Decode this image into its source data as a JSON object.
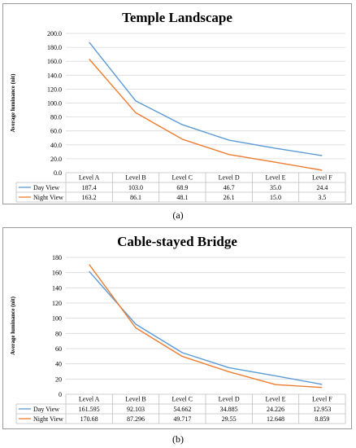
{
  "chart_data": [
    {
      "type": "line",
      "title": "Temple Landscape",
      "ylabel": "Average luminance (nit)",
      "xlabel": "",
      "ylim": [
        0,
        200
      ],
      "ytick_step": 20,
      "ytick_decimals": 1,
      "grid": true,
      "legend": "data-table-left",
      "categories": [
        "Level A",
        "Level B",
        "Level C",
        "Level D",
        "Level E",
        "Level F"
      ],
      "series": [
        {
          "name": "Day View",
          "color": "#5b9bd5",
          "values": [
            187.4,
            103.0,
            68.9,
            46.7,
            35.0,
            24.4
          ],
          "labels": [
            "187.4",
            "103.0",
            "68.9",
            "46.7",
            "35.0",
            "24.4"
          ]
        },
        {
          "name": "Night View",
          "color": "#ed7d31",
          "values": [
            163.2,
            86.1,
            48.1,
            26.1,
            15.0,
            3.5
          ],
          "labels": [
            "163.2",
            "86.1",
            "48.1",
            "26.1",
            "15.0",
            "3.5"
          ]
        }
      ]
    },
    {
      "type": "line",
      "title": "Cable-stayed Bridge",
      "ylabel": "Average luminance (nit)",
      "xlabel": "",
      "ylim": [
        0,
        180
      ],
      "ytick_step": 20,
      "ytick_decimals": 0,
      "grid": true,
      "legend": "data-table-left",
      "categories": [
        "Level A",
        "Level B",
        "Level C",
        "Level D",
        "Level E",
        "Level F"
      ],
      "series": [
        {
          "name": "Day View",
          "color": "#5b9bd5",
          "values": [
            161.595,
            92.103,
            54.662,
            34.885,
            24.226,
            12.953
          ],
          "labels": [
            "161.595",
            "92.103",
            "54.662",
            "34.885",
            "24.226",
            "12.953"
          ]
        },
        {
          "name": "Night View",
          "color": "#ed7d31",
          "values": [
            170.68,
            87.296,
            49.717,
            29.55,
            12.648,
            8.859
          ],
          "labels": [
            "170.68",
            "87.296",
            "49.717",
            "29.55",
            "12.648",
            "8.859"
          ]
        }
      ]
    }
  ],
  "captions": [
    "(a)",
    "(b)"
  ]
}
